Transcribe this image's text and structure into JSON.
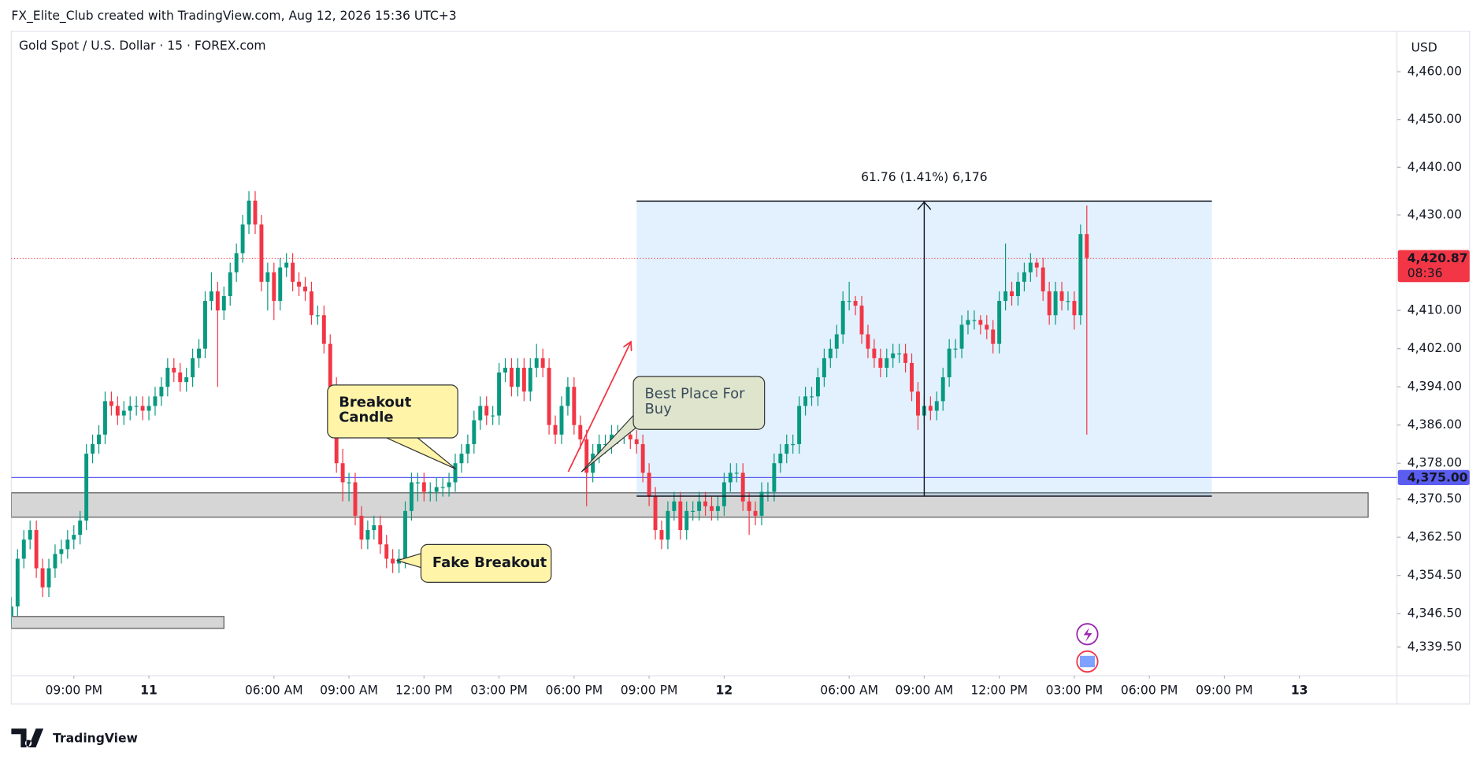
{
  "header": {
    "attribution": "FX_Elite_Club created with TradingView.com, Aug 12, 2026 15:36 UTC+3",
    "symbol": "Gold Spot / U.S. Dollar · 15 · FOREX.com"
  },
  "footer": {
    "brand": "TradingView"
  },
  "chart_data": {
    "type": "candlestick",
    "currency": "USD",
    "up_color": "#089981",
    "down_color": "#f23645",
    "open": [
      4346,
      4348,
      4358,
      4362,
      4364,
      4356,
      4352,
      4356,
      4359,
      4360,
      4362,
      4363,
      4366,
      4380,
      4382,
      4384,
      4391,
      4390,
      4388,
      4389,
      4390,
      4390,
      4389,
      4390,
      4392,
      4394,
      4398,
      4397,
      4395,
      4396,
      4400,
      4402,
      4412,
      4414,
      4410,
      4413,
      4418,
      4422,
      4428,
      4433,
      4428,
      4416,
      4418,
      4412,
      4419,
      4420,
      4416,
      4415,
      4414,
      4409,
      4409,
      4403,
      4394,
      4378,
      4374,
      4374,
      4367,
      4362,
      4364,
      4365,
      4361,
      4358,
      4357,
      4358,
      4368,
      4374,
      4374,
      4372,
      4372,
      4373,
      4373,
      4374,
      4378,
      4380,
      4382,
      4387,
      4390,
      4388,
      4388,
      4397,
      4398,
      4394,
      4398,
      4393,
      4398,
      4400,
      4398,
      4386,
      4384,
      4390,
      4394,
      4386,
      4383,
      4376,
      4380,
      4382,
      4382,
      4384,
      4384,
      4384,
      4383,
      4382,
      4376,
      4371,
      4364,
      4362,
      4368,
      4370,
      4364,
      4368,
      4368,
      4370,
      4369,
      4368,
      4369,
      4374,
      4376,
      4376,
      4370,
      4368,
      4367,
      4372,
      4372,
      4378,
      4380,
      4382,
      4382,
      4390,
      4392,
      4392,
      4396,
      4400,
      4402,
      4405,
      4412,
      4412,
      4411,
      4405,
      4402,
      4400,
      4398,
      4400,
      4401,
      4401,
      4399,
      4393,
      4388,
      4390,
      4389,
      4391,
      4396,
      4402,
      4402,
      4407,
      4408,
      4408,
      4407,
      4406,
      4403,
      4412,
      4414,
      4413,
      4416,
      4418,
      4420,
      4419,
      4414,
      4409,
      4414,
      4412,
      4412,
      4409,
      4426
    ],
    "high": [
      4350,
      4360,
      4364,
      4366,
      4366,
      4358,
      4358,
      4361,
      4362,
      4364,
      4365,
      4368,
      4382,
      4384,
      4386,
      4393,
      4393,
      4392,
      4391,
      4392,
      4392,
      4392,
      4392,
      4394,
      4396,
      4400,
      4400,
      4399,
      4398,
      4402,
      4404,
      4414,
      4418,
      4416,
      4415,
      4420,
      4424,
      4430,
      4435,
      4435,
      4430,
      4420,
      4420,
      4421,
      4422,
      4422,
      4418,
      4417,
      4416,
      4411,
      4411,
      4405,
      4396,
      4381,
      4376,
      4376,
      4369,
      4366,
      4367,
      4367,
      4363,
      4360,
      4360,
      4370,
      4376,
      4376,
      4376,
      4374,
      4375,
      4375,
      4376,
      4380,
      4382,
      4384,
      4389,
      4392,
      4392,
      4390,
      4399,
      4400,
      4400,
      4400,
      4400,
      4400,
      4403,
      4402,
      4400,
      4388,
      4392,
      4396,
      4396,
      4388,
      4385,
      4382,
      4384,
      4384,
      4386,
      4386,
      4386,
      4386,
      4385,
      4384,
      4378,
      4373,
      4366,
      4370,
      4372,
      4372,
      4370,
      4370,
      4372,
      4372,
      4371,
      4371,
      4376,
      4378,
      4378,
      4378,
      4372,
      4370,
      4374,
      4374,
      4380,
      4382,
      4384,
      4384,
      4392,
      4394,
      4394,
      4398,
      4402,
      4404,
      4407,
      4414,
      4416,
      4413,
      4413,
      4407,
      4404,
      4402,
      4402,
      4403,
      4403,
      4403,
      4401,
      4395,
      4392,
      4392,
      4393,
      4398,
      4404,
      4404,
      4409,
      4410,
      4410,
      4409,
      4409,
      4408,
      4414,
      4424,
      4416,
      4418,
      4420,
      4422,
      4421,
      4421,
      4416,
      4416,
      4416,
      4414,
      4414,
      4428,
      4432
    ],
    "low": [
      4344,
      4346,
      4356,
      4360,
      4354,
      4350,
      4350,
      4354,
      4357,
      4358,
      4360,
      4361,
      4364,
      4378,
      4380,
      4382,
      4388,
      4386,
      4386,
      4387,
      4388,
      4387,
      4387,
      4388,
      4390,
      4392,
      4395,
      4393,
      4393,
      4394,
      4398,
      4400,
      4410,
      4394,
      4408,
      4411,
      4416,
      4420,
      4426,
      4426,
      4414,
      4410,
      4408,
      4410,
      4417,
      4414,
      4413,
      4412,
      4407,
      4407,
      4401,
      4392,
      4376,
      4370,
      4370,
      4365,
      4360,
      4360,
      4362,
      4359,
      4356,
      4355,
      4355,
      4356,
      4366,
      4370,
      4370,
      4370,
      4370,
      4371,
      4371,
      4372,
      4376,
      4378,
      4380,
      4385,
      4386,
      4386,
      4386,
      4395,
      4392,
      4392,
      4391,
      4391,
      4396,
      4396,
      4384,
      4382,
      4382,
      4388,
      4384,
      4381,
      4369,
      4374,
      4378,
      4380,
      4380,
      4382,
      4382,
      4381,
      4380,
      4374,
      4369,
      4362,
      4360,
      4360,
      4366,
      4362,
      4362,
      4366,
      4366,
      4367,
      4366,
      4366,
      4367,
      4372,
      4374,
      4368,
      4363,
      4365,
      4365,
      4370,
      4370,
      4376,
      4378,
      4380,
      4380,
      4388,
      4390,
      4390,
      4394,
      4398,
      4400,
      4403,
      4410,
      4409,
      4403,
      4400,
      4398,
      4396,
      4396,
      4398,
      4399,
      4397,
      4391,
      4385,
      4386,
      4387,
      4387,
      4389,
      4394,
      4400,
      4400,
      4405,
      4406,
      4405,
      4404,
      4401,
      4401,
      4410,
      4411,
      4411,
      4414,
      4416,
      4417,
      4412,
      4407,
      4407,
      4410,
      4410,
      4406,
      4407,
      4384
    ],
    "close": [
      4348,
      4358,
      4362,
      4364,
      4356,
      4352,
      4356,
      4359,
      4360,
      4362,
      4363,
      4366,
      4380,
      4382,
      4384,
      4391,
      4390,
      4388,
      4389,
      4390,
      4390,
      4389,
      4390,
      4392,
      4394,
      4398,
      4397,
      4395,
      4396,
      4400,
      4402,
      4412,
      4414,
      4410,
      4413,
      4418,
      4422,
      4428,
      4433,
      4428,
      4416,
      4418,
      4412,
      4419,
      4420,
      4416,
      4415,
      4414,
      4409,
      4409,
      4403,
      4394,
      4378,
      4374,
      4374,
      4367,
      4362,
      4364,
      4365,
      4361,
      4358,
      4357,
      4358,
      4368,
      4374,
      4374,
      4372,
      4372,
      4373,
      4373,
      4374,
      4378,
      4380,
      4382,
      4387,
      4390,
      4388,
      4388,
      4397,
      4398,
      4394,
      4398,
      4393,
      4398,
      4400,
      4398,
      4386,
      4384,
      4390,
      4394,
      4386,
      4383,
      4376,
      4380,
      4382,
      4382,
      4384,
      4384,
      4384,
      4383,
      4382,
      4376,
      4371,
      4364,
      4362,
      4368,
      4370,
      4364,
      4368,
      4368,
      4370,
      4369,
      4368,
      4369,
      4374,
      4376,
      4376,
      4370,
      4368,
      4367,
      4372,
      4372,
      4378,
      4380,
      4382,
      4382,
      4390,
      4392,
      4392,
      4396,
      4400,
      4402,
      4405,
      4412,
      4412,
      4411,
      4405,
      4402,
      4400,
      4398,
      4400,
      4401,
      4401,
      4399,
      4393,
      4388,
      4390,
      4389,
      4391,
      4396,
      4402,
      4402,
      4407,
      4408,
      4408,
      4407,
      4406,
      4403,
      4412,
      4414,
      4413,
      4416,
      4418,
      4420,
      4419,
      4414,
      4409,
      4414,
      4412,
      4412,
      4409,
      4426,
      4421
    ],
    "xlim": [
      0,
      221.6
    ],
    "xticks": [
      {
        "value": 10,
        "label": "09:00 PM"
      },
      {
        "value": 22,
        "label": "11"
      },
      {
        "value": 42,
        "label": "06:00 AM"
      },
      {
        "value": 54,
        "label": "09:00 AM"
      },
      {
        "value": 66,
        "label": "12:00 PM"
      },
      {
        "value": 78,
        "label": "03:00 PM"
      },
      {
        "value": 90,
        "label": "06:00 PM"
      },
      {
        "value": 102,
        "label": "09:00 PM"
      },
      {
        "value": 114,
        "label": "12"
      },
      {
        "value": 134,
        "label": "06:00 AM"
      },
      {
        "value": 146,
        "label": "09:00 AM"
      },
      {
        "value": 158,
        "label": "12:00 PM"
      },
      {
        "value": 170,
        "label": "03:00 PM"
      },
      {
        "value": 182,
        "label": "06:00 PM"
      },
      {
        "value": 194,
        "label": "09:00 PM"
      },
      {
        "value": 206,
        "label": "13"
      }
    ],
    "ylim": [
      4333.5,
      4468.5
    ],
    "yticks": [
      {
        "value": 4460,
        "label": "4,460.00"
      },
      {
        "value": 4450,
        "label": "4,450.00"
      },
      {
        "value": 4440,
        "label": "4,440.00"
      },
      {
        "value": 4430,
        "label": "4,430.00"
      },
      {
        "value": 4410,
        "label": "4,410.00"
      },
      {
        "value": 4402,
        "label": "4,402.00"
      },
      {
        "value": 4394,
        "label": "4,394.00"
      },
      {
        "value": 4386,
        "label": "4,386.00"
      },
      {
        "value": 4378,
        "label": "4,378.00"
      },
      {
        "value": 4370.5,
        "label": "4,370.50"
      },
      {
        "value": 4362.5,
        "label": "4,362.50"
      },
      {
        "value": 4354.5,
        "label": "4,354.50"
      },
      {
        "value": 4346.5,
        "label": "4,346.50"
      },
      {
        "value": 4339.5,
        "label": "4,339.50"
      }
    ],
    "grid": false,
    "last_price": {
      "value": 4420.87,
      "label": "4,420.87",
      "countdown": "08:36",
      "color": "#f23645"
    },
    "horizontal_line": {
      "value": 4375,
      "label": "4,375.00",
      "color": "#5b5cf0"
    },
    "zones": [
      {
        "from": 0,
        "to": 217,
        "low": 4366.7,
        "high": 4371.8
      },
      {
        "from": 0,
        "to": 34,
        "low": 4343.4,
        "high": 4345.9
      }
    ],
    "measure": {
      "from": 100,
      "to": 192,
      "low": 4371.1,
      "high": 4432.9,
      "label": "61.76 (1.41%) 6,176"
    },
    "annotations": [
      {
        "text": "Breakout Candle"
      },
      {
        "text": "Fake Breakout"
      },
      {
        "text": "Best Place For Buy"
      }
    ]
  }
}
